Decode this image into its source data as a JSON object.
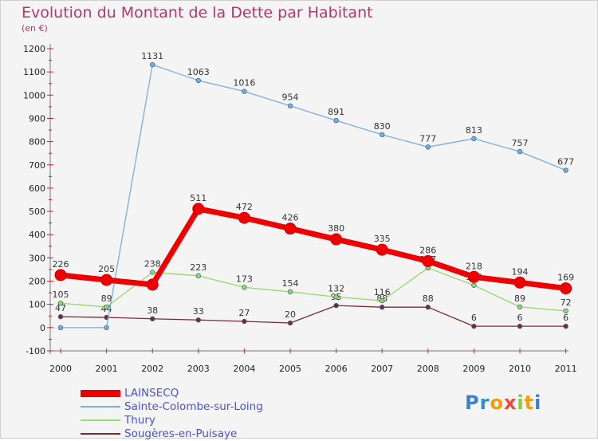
{
  "title": "Evolution du Montant de la Dette par Habitant",
  "unit": "(en €)",
  "logo": {
    "text": "Proxiti",
    "letters": [
      "P",
      "r",
      "o",
      "x",
      "i",
      "t",
      "i"
    ],
    "colors": [
      "#3b7fd1",
      "#2e8fd6",
      "#f39c12",
      "#e74c3c",
      "#8cc63f",
      "#f39c12",
      "#3b7fd1"
    ]
  },
  "chart_data": {
    "type": "line",
    "title": "Evolution du Montant de la Dette par Habitant",
    "ylabel": "(en €)",
    "x": [
      "2000",
      "2001",
      "2002",
      "2003",
      "2004",
      "2005",
      "2006",
      "2007",
      "2008",
      "2009",
      "2010",
      "2011"
    ],
    "yticks": [
      -100,
      0,
      100,
      200,
      300,
      400,
      500,
      600,
      700,
      800,
      900,
      1000,
      1100,
      1200
    ],
    "ylim": [
      -100,
      1200
    ],
    "grid": false,
    "legend": "bottom-left",
    "series": [
      {
        "name": "Sougères-en-Puisaye",
        "color": "#7a2a32",
        "width": 1.3,
        "marker": 2.8,
        "values": [
          47,
          44,
          38,
          33,
          27,
          20,
          95,
          88,
          88,
          6,
          6,
          6
        ],
        "labels": [
          "47",
          "44",
          "38",
          "33",
          "27",
          "20",
          "95",
          "88",
          "88",
          "6",
          "6",
          "6"
        ]
      },
      {
        "name": "Thury",
        "color": "#97d86a",
        "width": 1.3,
        "marker": 2.8,
        "values": [
          105,
          89,
          238,
          223,
          173,
          154,
          132,
          116,
          257,
          182,
          89,
          72
        ],
        "labels": [
          "105",
          "89",
          "238",
          "223",
          "173",
          "154",
          "132",
          "116",
          "257",
          "182",
          "89",
          "72"
        ]
      },
      {
        "name": "Sainte-Colombe-sur-Loing",
        "color": "#7aaedc",
        "width": 1.3,
        "marker": 2.8,
        "values": [
          0,
          0,
          1131,
          1063,
          1016,
          954,
          891,
          830,
          777,
          813,
          757,
          677
        ],
        "labels": [
          "",
          "",
          "1131",
          "1063",
          "1016",
          "954",
          "891",
          "830",
          "777",
          "813",
          "757",
          "677"
        ]
      },
      {
        "name": "LAINSECQ",
        "color": "#ee0000",
        "width": 7,
        "marker": 7,
        "values": [
          226,
          205,
          185,
          511,
          472,
          426,
          380,
          335,
          286,
          218,
          194,
          169
        ],
        "labels": [
          "226",
          "205",
          "",
          "511",
          "472",
          "426",
          "380",
          "335",
          "286",
          "218",
          "194",
          "169"
        ]
      }
    ],
    "legend_order": [
      "LAINSECQ",
      "Sainte-Colombe-sur-Loing",
      "Thury",
      "Sougères-en-Puisaye"
    ]
  }
}
